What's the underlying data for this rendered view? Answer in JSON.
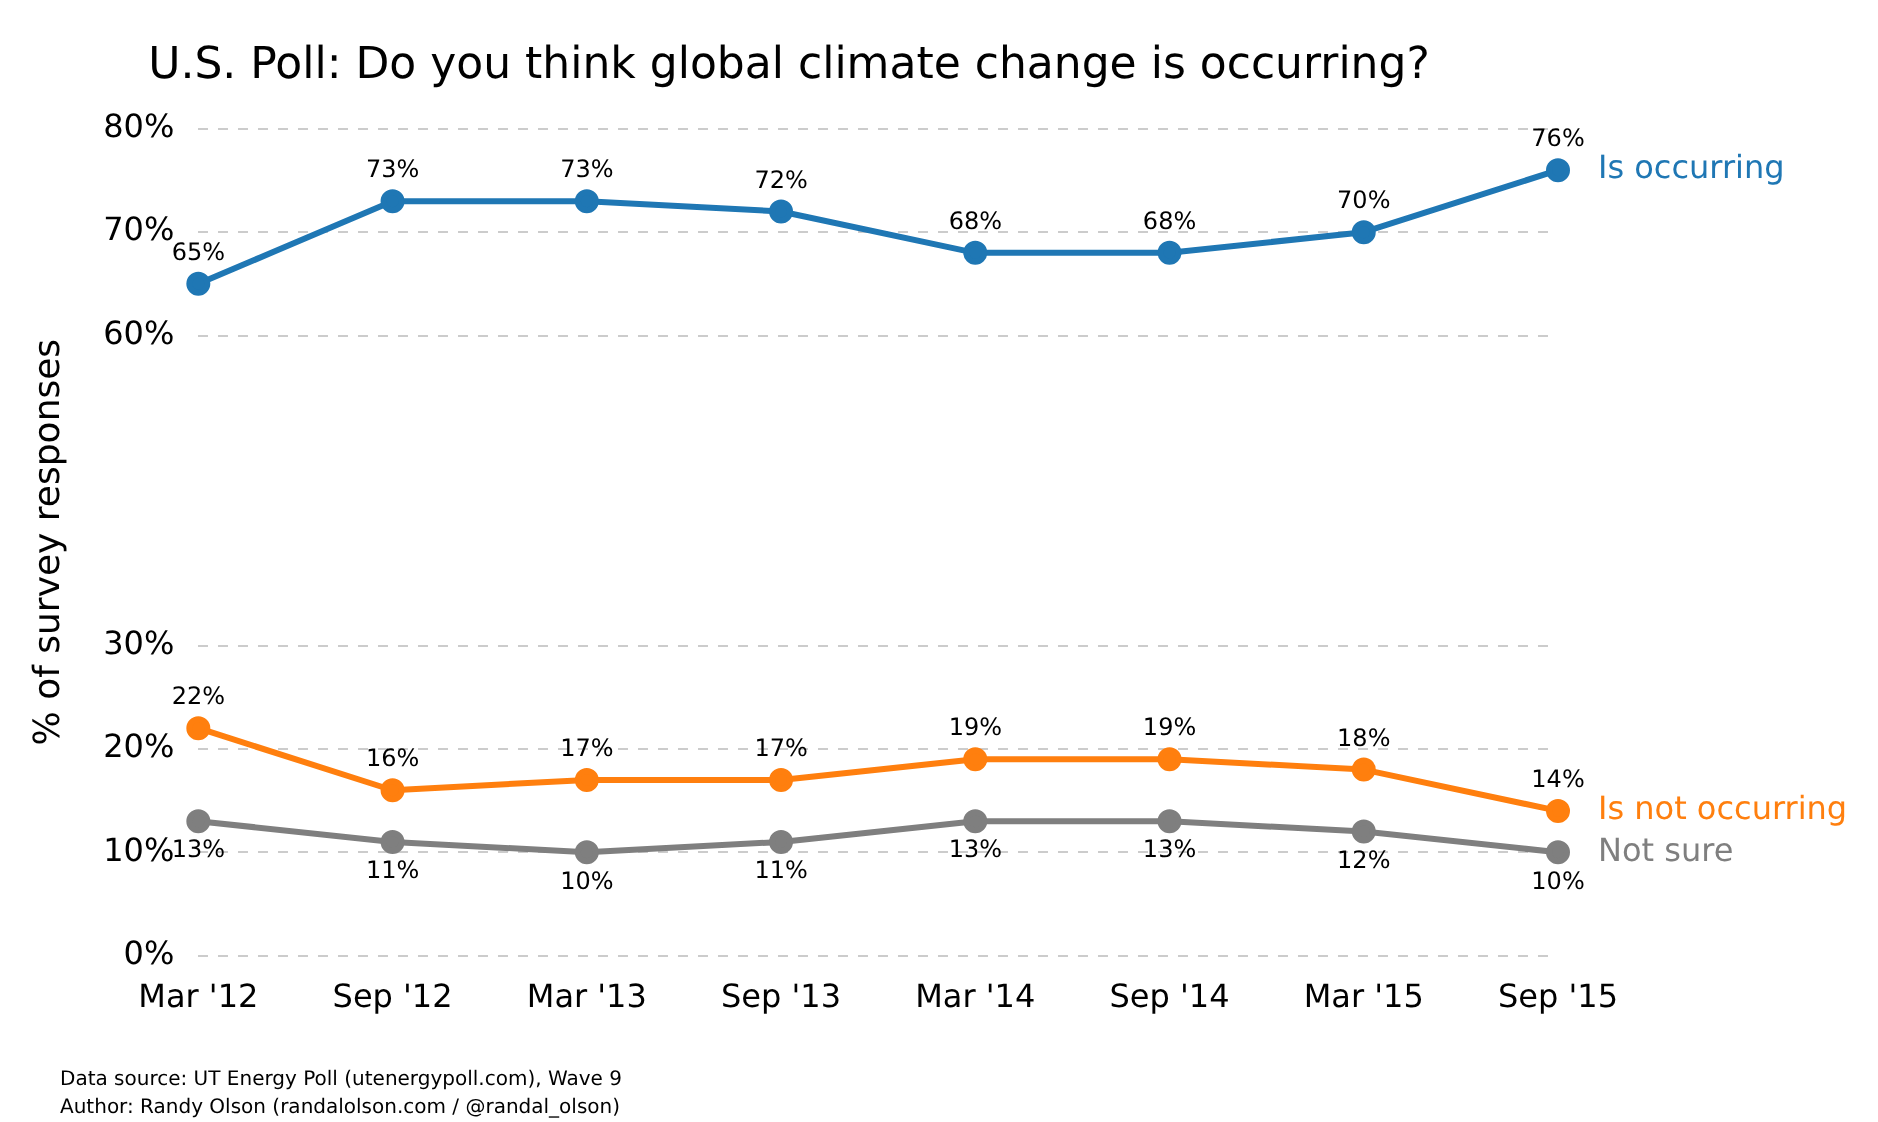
{
  "chart_data": {
    "type": "line",
    "title": "U.S. Poll: Do you think global climate change is occurring?",
    "ylabel": "% of survey responses",
    "categories": [
      "Mar '12",
      "Sep '12",
      "Mar '13",
      "Sep '13",
      "Mar '14",
      "Sep '14",
      "Mar '15",
      "Sep '15"
    ],
    "series": [
      {
        "name": "Is occurring",
        "color": "#1f77b4",
        "values": [
          65,
          73,
          73,
          72,
          68,
          68,
          70,
          76
        ],
        "value_labels": [
          "65%",
          "73%",
          "73%",
          "72%",
          "68%",
          "68%",
          "70%",
          "76%"
        ]
      },
      {
        "name": "Is not occurring",
        "color": "#ff7f0e",
        "values": [
          22,
          16,
          17,
          17,
          19,
          19,
          18,
          14
        ],
        "value_labels": [
          "22%",
          "16%",
          "17%",
          "17%",
          "19%",
          "19%",
          "18%",
          "14%"
        ]
      },
      {
        "name": "Not sure",
        "color": "#7f7f7f",
        "values": [
          13,
          11,
          10,
          11,
          13,
          13,
          12,
          10
        ],
        "value_labels": [
          "13%",
          "11%",
          "10%",
          "11%",
          "13%",
          "13%",
          "12%",
          "10%"
        ]
      }
    ],
    "ylim": [
      0,
      80
    ],
    "yticks": [
      {
        "value": 0,
        "label": "0%"
      },
      {
        "value": 10,
        "label": "10%"
      },
      {
        "value": 20,
        "label": "20%"
      },
      {
        "value": 30,
        "label": "30%"
      },
      {
        "value": 60,
        "label": "60%"
      },
      {
        "value": 70,
        "label": "70%"
      },
      {
        "value": 80,
        "label": "80%"
      }
    ],
    "grid": "y",
    "legend": false,
    "marker": "circle",
    "line_style": "solid",
    "annotations": [
      "Data source: UT Energy Poll (utenergypoll.com), Wave 9",
      "Author: Randy Olson (randalolson.com / @randal_olson)"
    ]
  }
}
